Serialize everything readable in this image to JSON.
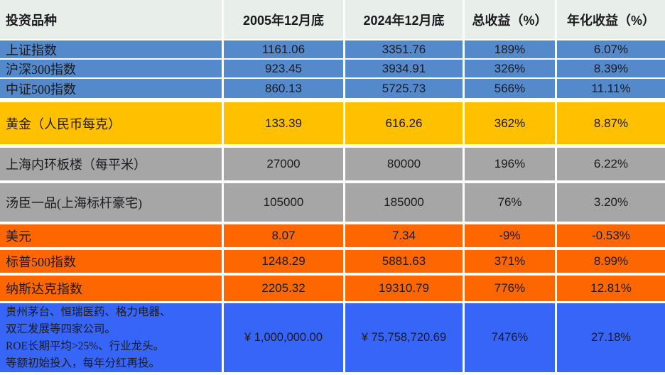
{
  "table": {
    "headers": [
      "投资品种",
      "2005年12月底",
      "2024年12月底",
      "总收益（%）",
      "年化收益（%）"
    ],
    "rows": [
      {
        "name": "上证指数",
        "v2005": "1161.06",
        "v2024": "3351.76",
        "total": "189%",
        "annual": "6.07%",
        "theme": "blue"
      },
      {
        "name": "沪深300指数",
        "v2005": "923.45",
        "v2024": "3934.91",
        "total": "326%",
        "annual": "8.39%",
        "theme": "blue"
      },
      {
        "name": "中证500指数",
        "v2005": "860.13",
        "v2024": "5725.73",
        "total": "566%",
        "annual": "11.11%",
        "theme": "blue"
      },
      {
        "name": "黄金（人民币每克）",
        "v2005": "133.39",
        "v2024": "616.26",
        "total": "362%",
        "annual": "8.87%",
        "theme": "gold"
      },
      {
        "name": "上海内环板楼（每平米）",
        "v2005": "27000",
        "v2024": "80000",
        "total": "196%",
        "annual": "6.22%",
        "theme": "gray"
      },
      {
        "name": "汤臣一品(上海标杆豪宅)",
        "v2005": "105000",
        "v2024": "185000",
        "total": "76%",
        "annual": "3.20%",
        "theme": "gray"
      },
      {
        "name": "美元",
        "v2005": "8.07",
        "v2024": "7.34",
        "total": "-9%",
        "annual": "-0.53%",
        "theme": "orange"
      },
      {
        "name": "标普500指数",
        "v2005": "1248.29",
        "v2024": "5881.63",
        "total": "371%",
        "annual": "8.99%",
        "theme": "orange"
      },
      {
        "name": "纳斯达克指数",
        "v2005": "2205.32",
        "v2024": "19310.79",
        "total": "776%",
        "annual": "12.81%",
        "theme": "orange"
      },
      {
        "name": "贵州茅台、恒瑞医药、格力电器、\n双汇发展等四家公司。\nROE长期平均>25%、行业龙头。\n等额初始投入，每年分红再投。",
        "v2005": "¥ 1,000,000.00",
        "v2024": "¥ 75,758,720.69",
        "total": "7476%",
        "annual": "27.18%",
        "theme": "royal"
      }
    ],
    "colors": {
      "header_bg": "#e8eee9",
      "blue": "#5489cc",
      "gold": "#ffc000",
      "gray": "#a6a6a6",
      "orange": "#fe6600",
      "royal_blue": "#3765f7",
      "separator": "#ffffff",
      "text": "#1b1b1f"
    }
  }
}
